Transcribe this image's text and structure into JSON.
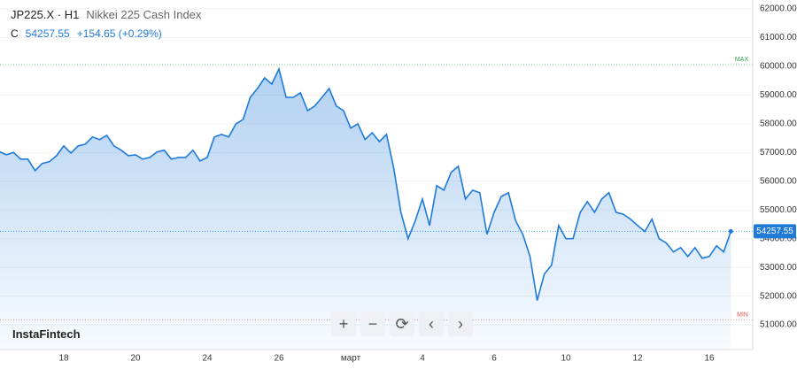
{
  "header": {
    "symbol": "JP225.X · H1",
    "name": "Nikkei 225 Cash Index",
    "close_label": "C",
    "change": "+154.65 (+0.29%)"
  },
  "brand": "InstaFintech",
  "chart_data": {
    "type": "area",
    "color": "#1f7ad8",
    "grid": true,
    "categories": [
      null,
      null,
      null,
      null,
      null,
      null,
      null,
      null,
      null,
      "18",
      null,
      null,
      null,
      null,
      null,
      null,
      null,
      null,
      null,
      "20",
      null,
      null,
      null,
      null,
      null,
      null,
      null,
      null,
      null,
      "24",
      null,
      null,
      null,
      null,
      null,
      null,
      null,
      null,
      null,
      "26",
      null,
      null,
      null,
      null,
      null,
      null,
      null,
      null,
      null,
      "март",
      null,
      null,
      null,
      null,
      null,
      null,
      null,
      null,
      null,
      "4",
      null,
      null,
      null,
      null,
      null,
      null,
      null,
      null,
      null,
      "6",
      null,
      null,
      null,
      null,
      null,
      null,
      null,
      null,
      null,
      "10",
      null,
      null,
      null,
      null,
      null,
      null,
      null,
      null,
      null,
      "12",
      null,
      null,
      null,
      null,
      null,
      null,
      null,
      null,
      null,
      "16",
      null,
      null,
      null
    ],
    "values": [
      57030,
      56920,
      57000,
      56770,
      56770,
      56370,
      56620,
      56680,
      56890,
      57230,
      56980,
      57230,
      57290,
      57540,
      57450,
      57600,
      57230,
      57080,
      56890,
      56920,
      56770,
      56830,
      57020,
      57080,
      56770,
      56830,
      56830,
      57080,
      56710,
      56830,
      57540,
      57630,
      57540,
      58000,
      58150,
      58920,
      59230,
      59600,
      59380,
      59910,
      58920,
      58920,
      59080,
      58460,
      58620,
      58920,
      59230,
      58620,
      58460,
      57850,
      58000,
      57450,
      57690,
      57380,
      57630,
      56460,
      54920,
      54000,
      54620,
      55380,
      54460,
      55850,
      55690,
      56310,
      56520,
      55380,
      55690,
      55600,
      54150,
      54920,
      55470,
      55600,
      54620,
      54150,
      53380,
      51850,
      52770,
      53080,
      54460,
      54000,
      54000,
      54920,
      55290,
      54920,
      55380,
      55600,
      54920,
      54850,
      54680,
      54460,
      54250,
      54680,
      54000,
      53850,
      53540,
      53690,
      53380,
      53690,
      53320,
      53380,
      53750,
      53540,
      54257.55
    ],
    "ylim": [
      50140,
      62310
    ],
    "yticks": [
      {
        "value": 51000,
        "label": "51000.00"
      },
      {
        "value": 52000,
        "label": "52000.00"
      },
      {
        "value": 53000,
        "label": "53000.00"
      },
      {
        "value": 54000,
        "label": "54000.00"
      },
      {
        "value": 55000,
        "label": "55000.00"
      },
      {
        "value": 56000,
        "label": "56000.00"
      },
      {
        "value": 57000,
        "label": "57000.00"
      },
      {
        "value": 58000,
        "label": "58000.00"
      },
      {
        "value": 59000,
        "label": "59000.00"
      },
      {
        "value": 60000,
        "label": "60000.00"
      },
      {
        "value": 61000,
        "label": "61000.00"
      },
      {
        "value": 62000,
        "label": "62000.00"
      }
    ],
    "max_line": {
      "label": "MAX",
      "value": 60060
    },
    "min_line": {
      "label": "MIN",
      "value": 51170
    }
  }
}
